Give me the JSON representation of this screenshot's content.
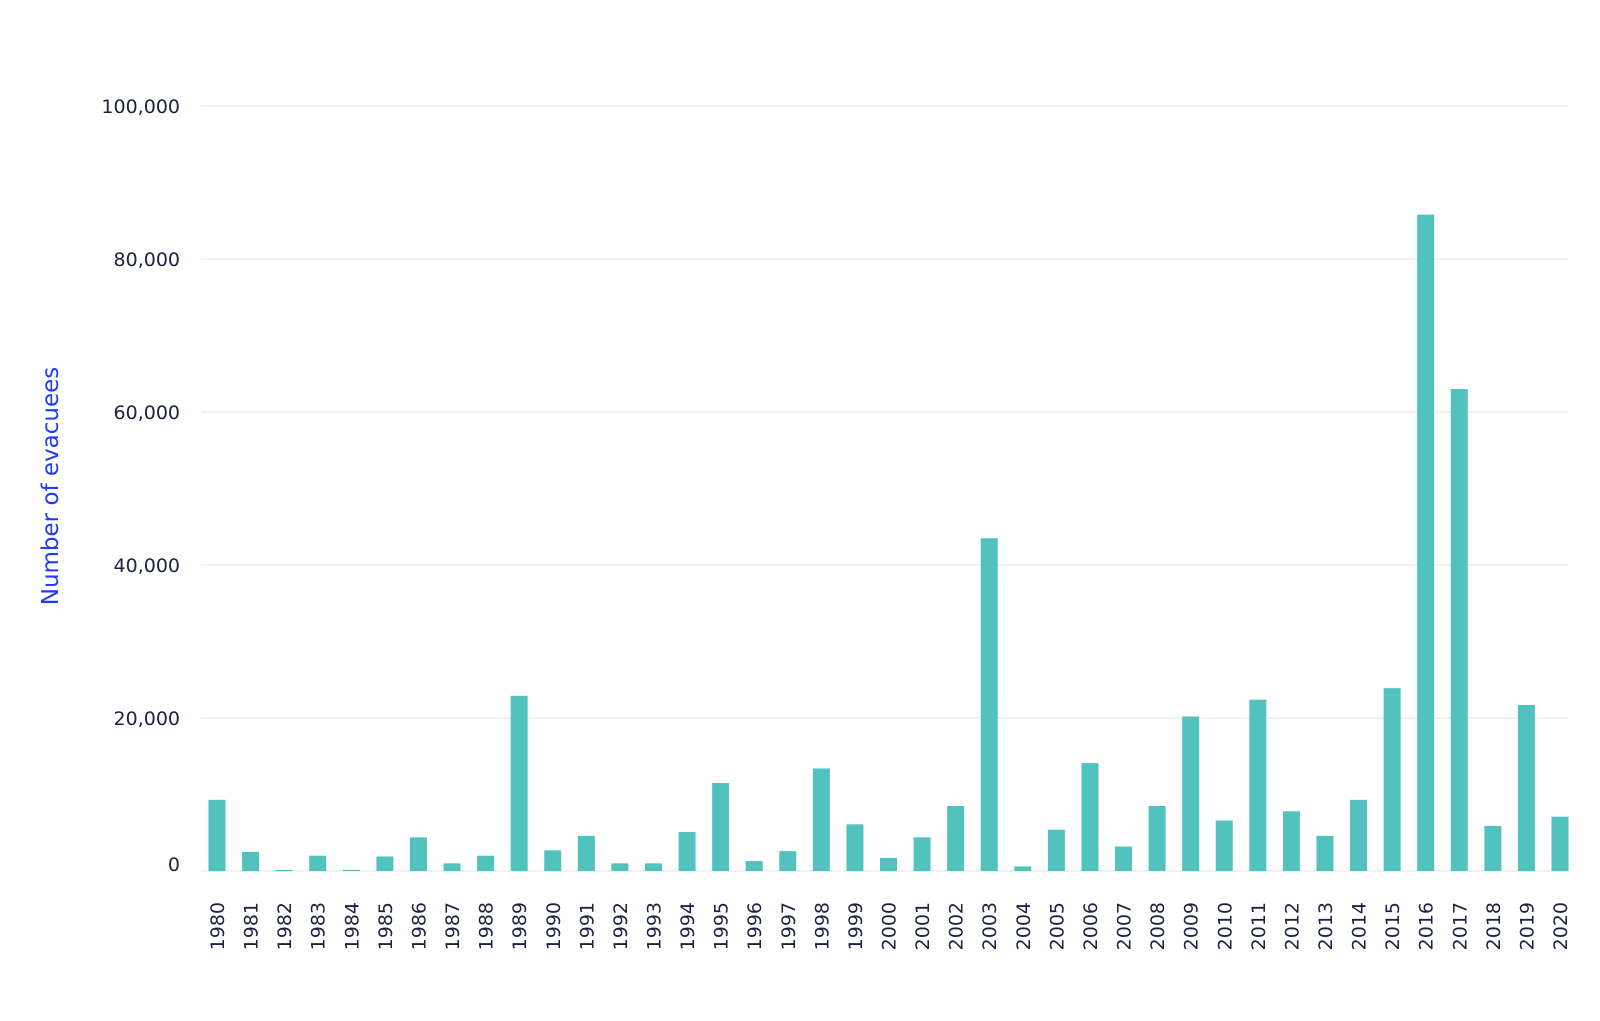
{
  "chart_data": {
    "type": "bar",
    "title": "",
    "xlabel": "",
    "ylabel": "Number of evacuees",
    "ylim": [
      0,
      100000
    ],
    "yticks": [
      0,
      20000,
      40000,
      60000,
      80000,
      100000
    ],
    "ytick_labels": [
      "0",
      "20,000",
      "40,000",
      "60,000",
      "80,000",
      "100,000"
    ],
    "grid": "horizontal",
    "bar_color": "#52c2bf",
    "categories": [
      "1980",
      "1981",
      "1982",
      "1983",
      "1984",
      "1985",
      "1986",
      "1987",
      "1988",
      "1989",
      "1990",
      "1991",
      "1992",
      "1993",
      "1994",
      "1995",
      "1996",
      "1997",
      "1998",
      "1999",
      "2000",
      "2001",
      "2002",
      "2003",
      "2004",
      "2005",
      "2006",
      "2007",
      "2008",
      "2009",
      "2010",
      "2011",
      "2012",
      "2013",
      "2014",
      "2015",
      "2016",
      "2017",
      "2018",
      "2019",
      "2020"
    ],
    "values": [
      9300,
      2500,
      150,
      2000,
      150,
      1900,
      4400,
      1000,
      2000,
      22900,
      2700,
      4600,
      1000,
      1000,
      5100,
      11500,
      1300,
      2600,
      13400,
      6100,
      1700,
      4400,
      8500,
      43500,
      600,
      5400,
      14100,
      3200,
      8500,
      20200,
      6600,
      22400,
      7800,
      4600,
      9300,
      23900,
      85800,
      63000,
      5900,
      21700,
      7100
    ]
  }
}
